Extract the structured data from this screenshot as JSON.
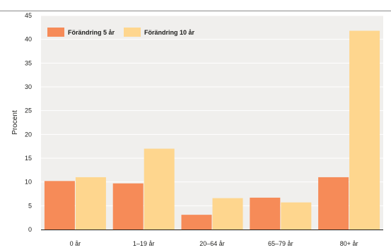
{
  "chart_data": {
    "type": "bar",
    "categories": [
      "0 år",
      "1–19 år",
      "20–64 år",
      "65–79 år",
      "80+ år"
    ],
    "series": [
      {
        "name": "Förändring 5 år",
        "color": "#f68b58",
        "values": [
          10.2,
          9.7,
          3.1,
          6.7,
          11.0
        ]
      },
      {
        "name": "Förändring 10 år",
        "color": "#fed68e",
        "values": [
          11.0,
          17.0,
          6.6,
          5.7,
          41.8
        ]
      }
    ],
    "title": "",
    "xlabel": "",
    "ylabel": "Procent",
    "ylim": [
      0,
      45
    ],
    "yticks": [
      0,
      5,
      10,
      15,
      20,
      25,
      30,
      35,
      40,
      45
    ],
    "grid": true,
    "legend": "top-left",
    "background_color": "#f0efed",
    "grid_color": "#ffffff"
  }
}
